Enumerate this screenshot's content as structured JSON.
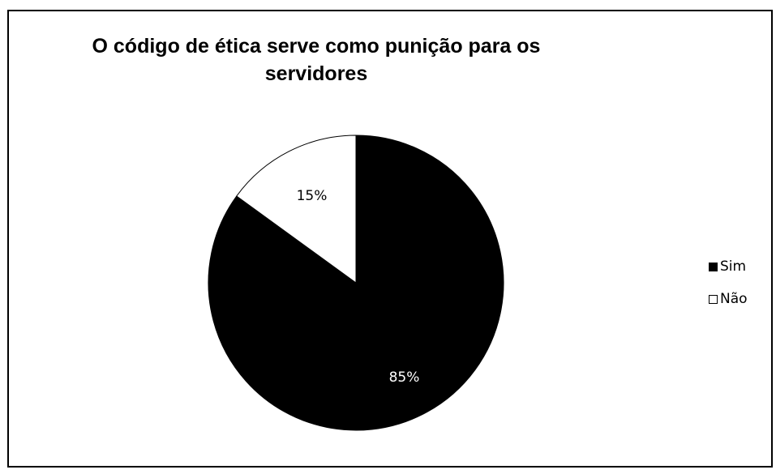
{
  "chart_data": {
    "type": "pie",
    "title": "O código de ética serve como punição para os servidores",
    "categories": [
      "Sim",
      "Não"
    ],
    "values": [
      85,
      15
    ],
    "data_labels": [
      "85%",
      "15%"
    ],
    "colors": [
      "#000000",
      "#ffffff"
    ],
    "label_colors": [
      "#ffffff",
      "#000000"
    ],
    "legend": {
      "position": "right",
      "items": [
        {
          "label": "Sim",
          "color": "#000000"
        },
        {
          "label": "Não",
          "color": "#ffffff"
        }
      ]
    }
  }
}
